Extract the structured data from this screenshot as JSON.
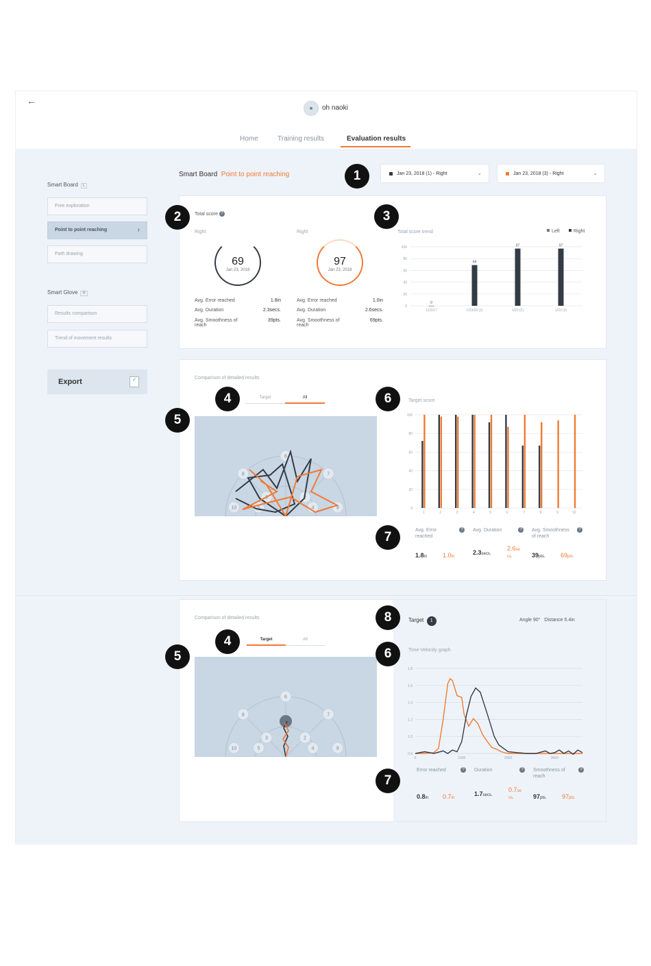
{
  "header": {
    "back_icon": "arrow-left-icon",
    "user_name": "oh naoki"
  },
  "tabs": [
    {
      "label": "Home"
    },
    {
      "label": "Training results"
    },
    {
      "label": "Evaluation results"
    }
  ],
  "sidebar": {
    "smart_board": {
      "title": "Smart Board",
      "badge": "L",
      "items": [
        {
          "label": "Free exploration"
        },
        {
          "label": "Point to point reaching"
        },
        {
          "label": "Path drawing"
        }
      ]
    },
    "smart_glove": {
      "title": "Smart Glove",
      "badge": "R",
      "items": [
        {
          "label": "Results comparison"
        },
        {
          "label": "Trend of movement results"
        }
      ]
    },
    "export_label": "Export"
  },
  "page": {
    "device": "Smart Board",
    "task": "Point to point reaching"
  },
  "selectors": [
    {
      "label": "Jan 23, 2018 (1) - Right",
      "color": "#333b45"
    },
    {
      "label": "Jan 23, 2018 (3) - Right",
      "color": "#f07a32"
    }
  ],
  "markers": {
    "m1": "1",
    "m2": "2",
    "m3": "3",
    "m4": "4",
    "m5": "5",
    "m6": "6",
    "m7": "7",
    "m8": "8"
  },
  "total_score": {
    "title": "Total score",
    "left": {
      "side": "Right",
      "score": "69",
      "date": "Jan 23, 2018",
      "error_label": "Avg. Error reached",
      "error_value": "1.8in",
      "duration_label": "Avg. Duration",
      "duration_value": "2.3secs.",
      "smooth_label": "Avg. Smoothness of reach",
      "smooth_value": "39pts."
    },
    "right": {
      "side": "Right",
      "score": "97",
      "date": "Jan 23, 2018",
      "error_label": "Avg. Error reached",
      "error_value": "1.0in",
      "duration_label": "Avg. Duration",
      "duration_value": "2.6secs.",
      "smooth_label": "Avg. Smoothness of reach",
      "smooth_value": "69pts."
    }
  },
  "comparison1": {
    "title": "Comparison of detailed results",
    "seg_target": "Target",
    "seg_all": "All",
    "target_score_title": "Target score",
    "stats": {
      "error_label": "Avg. Error reached",
      "error_a": "1.8",
      "error_a_unit": "in",
      "error_b": "1.0",
      "error_b_unit": "in",
      "duration_label": "Avg. Duration",
      "duration_a": "2.3",
      "duration_a_unit": "secs.",
      "duration_b": "2.6",
      "duration_b_unit": "se cs.",
      "smooth_label": "Avg. Smoothness of reach",
      "smooth_a": "39",
      "smooth_a_unit": "pts.",
      "smooth_b": "69",
      "smooth_b_unit": "pts."
    }
  },
  "comparison2": {
    "title": "Comparison of detailed results",
    "seg_target": "Target",
    "seg_all": "All",
    "target_label": "Target",
    "target_number": "1",
    "angle_label": "Angle",
    "angle_value": "90°",
    "distance_label": "Distance",
    "distance_value": "5.4in",
    "graph_title": "Time-Velocity graph",
    "stats": {
      "error_label": "Error reached",
      "error_a": "0.8",
      "error_a_unit": "in",
      "error_b": "0.7",
      "error_b_unit": "in",
      "duration_label": "Duration",
      "duration_a": "1.7",
      "duration_a_unit": "secs.",
      "duration_b": "0.7",
      "duration_b_unit": "se cs.",
      "smooth_label": "Smoothness of reach",
      "smooth_a": "97",
      "smooth_a_unit": "pts.",
      "smooth_b": "97",
      "smooth_b_unit": "pts."
    }
  },
  "target_layout": {
    "labels": [
      "6",
      "8",
      "7",
      "3",
      "2",
      "10",
      "5",
      "4",
      "9"
    ]
  },
  "chart_data": [
    {
      "type": "bar",
      "title": "Total score trend",
      "legend": [
        "Left",
        "Right"
      ],
      "legend_position": "top-right",
      "categories": [
        "11/3/17",
        "1/23/18 (1)",
        "1/23 (2)",
        "1/22 (3)"
      ],
      "series": [
        {
          "name": "Left",
          "values": [
            0,
            69,
            97,
            97
          ]
        }
      ],
      "data_labels": [
        "0",
        "69",
        "97",
        "97"
      ],
      "yticks": [
        "100",
        "80",
        "60",
        "40",
        "20",
        "0"
      ],
      "ylim": [
        0,
        100
      ],
      "grid": true
    },
    {
      "type": "bar",
      "title": "Target score",
      "categories": [
        "1",
        "2",
        "3",
        "4",
        "5",
        "6",
        "7",
        "8",
        "9",
        "10"
      ],
      "series": [
        {
          "values": [
            72,
            100,
            100,
            100,
            92,
            100,
            67,
            67,
            null,
            null
          ]
        },
        {
          "values": [
            100,
            98,
            98,
            100,
            100,
            87,
            100,
            92,
            94,
            100
          ]
        }
      ],
      "yticks": [
        "100",
        "80",
        "60",
        "40",
        "20",
        "0"
      ],
      "ylim": [
        0,
        100
      ],
      "grid": true
    },
    {
      "type": "line",
      "title": "Time-Velocity graph",
      "xticks": [
        "0",
        "1000",
        "2000",
        "3000"
      ],
      "yticks": [
        "1.8",
        "1.6",
        "1.4",
        "1.2",
        "1.0",
        "0.8"
      ],
      "xlim": [
        0,
        3600
      ],
      "ylim": [
        0.8,
        1.8
      ],
      "grid": true,
      "series": [
        {
          "x": [
            0,
            200,
            400,
            500,
            600,
            700,
            750,
            800,
            900,
            1000,
            1050,
            1150,
            1250,
            1350,
            1450,
            1550,
            1650,
            1750,
            1850,
            2000,
            2200,
            2400,
            2600,
            2800,
            3000,
            3200,
            3400,
            3600
          ],
          "y": [
            0.8,
            0.8,
            0.81,
            0.86,
            1.2,
            1.62,
            1.68,
            1.66,
            1.48,
            1.46,
            1.26,
            1.12,
            1.21,
            1.15,
            1.02,
            0.94,
            0.87,
            0.85,
            0.82,
            0.8,
            0.8,
            0.8,
            0.8,
            0.8,
            0.8,
            0.8,
            0.8,
            0.8
          ]
        },
        {
          "x": [
            0,
            200,
            400,
            600,
            700,
            800,
            900,
            1000,
            1100,
            1200,
            1300,
            1400,
            1500,
            1600,
            1700,
            1800,
            1900,
            2000,
            2200,
            2400,
            2600,
            2800,
            2900,
            3000,
            3100,
            3200,
            3300,
            3400,
            3500,
            3600
          ],
          "y": [
            0.8,
            0.82,
            0.8,
            0.83,
            0.8,
            0.84,
            0.82,
            0.94,
            1.25,
            1.47,
            1.57,
            1.52,
            1.35,
            1.18,
            1.0,
            0.9,
            0.86,
            0.82,
            0.81,
            0.8,
            0.8,
            0.83,
            0.8,
            0.81,
            0.84,
            0.8,
            0.83,
            0.79,
            0.84,
            0.81
          ]
        }
      ]
    }
  ]
}
